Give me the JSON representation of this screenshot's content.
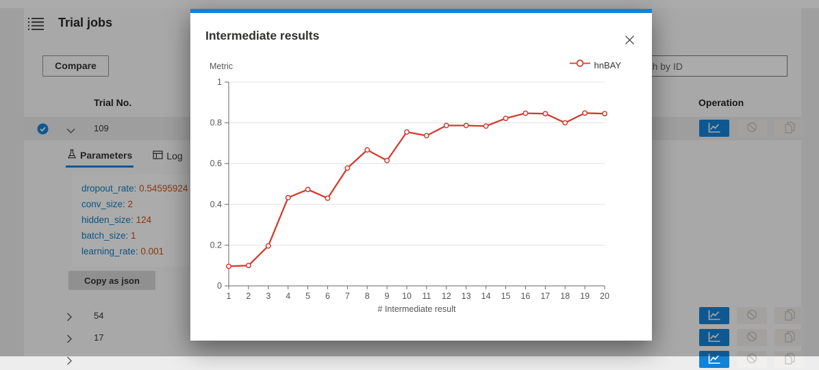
{
  "colors": {
    "accent": "#1182d8",
    "series_red": "#d23a2e",
    "param_key": "#0f7ac0",
    "param_value": "#ca5010"
  },
  "page": {
    "title": "Trial jobs",
    "compare_label": "Compare",
    "search_placeholder": "Search by ID",
    "table": {
      "trial_no_header": "Trial No.",
      "operation_header": "Operation",
      "selected_row": {
        "trial_no": "109",
        "checked": true
      },
      "collapsed_rows": [
        {
          "trial_no": "54"
        },
        {
          "trial_no": "17"
        },
        {
          "trial_no": ""
        }
      ]
    },
    "detail": {
      "tabs": [
        {
          "label": "Parameters"
        },
        {
          "label": "Log"
        }
      ],
      "parameters": [
        {
          "key": "dropout_rate",
          "value": "0.54595924"
        },
        {
          "key": "conv_size",
          "value": "2"
        },
        {
          "key": "hidden_size",
          "value": "124"
        },
        {
          "key": "batch_size",
          "value": "1"
        },
        {
          "key": "learning_rate",
          "value": "0.001"
        }
      ],
      "copy_label": "Copy as json"
    },
    "icons": {
      "menu": "bulleted-list-icon",
      "row_expand": "chevron-down-icon",
      "row_collapsed": "chevron-right-icon",
      "checkbox": "checked-circle-icon",
      "op1": "line-chart-icon",
      "op2": "ban-icon",
      "op3": "copy-icon"
    }
  },
  "modal": {
    "title": "Intermediate results",
    "close": "close-icon"
  },
  "chart_data": {
    "type": "line",
    "title": "Intermediate results",
    "xlabel": "# Intermediate result",
    "ylabel": "Metric",
    "xlim": [
      1,
      20
    ],
    "ylim": [
      0,
      1
    ],
    "xticks": [
      1,
      2,
      3,
      4,
      5,
      6,
      7,
      8,
      9,
      10,
      11,
      12,
      13,
      14,
      15,
      16,
      17,
      18,
      19,
      20
    ],
    "yticks": [
      0,
      0.2,
      0.4,
      0.6,
      0.8,
      1
    ],
    "grid": true,
    "legend_position": "top-right",
    "marker": "open-circle",
    "series": [
      {
        "name": "hnBAY",
        "color": "#d23a2e",
        "x": [
          1,
          2,
          3,
          4,
          5,
          6,
          7,
          8,
          9,
          10,
          11,
          12,
          13,
          14,
          15,
          16,
          17,
          18,
          19,
          20
        ],
        "values": [
          0.096,
          0.1,
          0.196,
          0.433,
          0.473,
          0.43,
          0.578,
          0.667,
          0.615,
          0.755,
          0.737,
          0.787,
          0.787,
          0.784,
          0.822,
          0.847,
          0.845,
          0.8,
          0.848,
          0.845
        ]
      }
    ]
  }
}
